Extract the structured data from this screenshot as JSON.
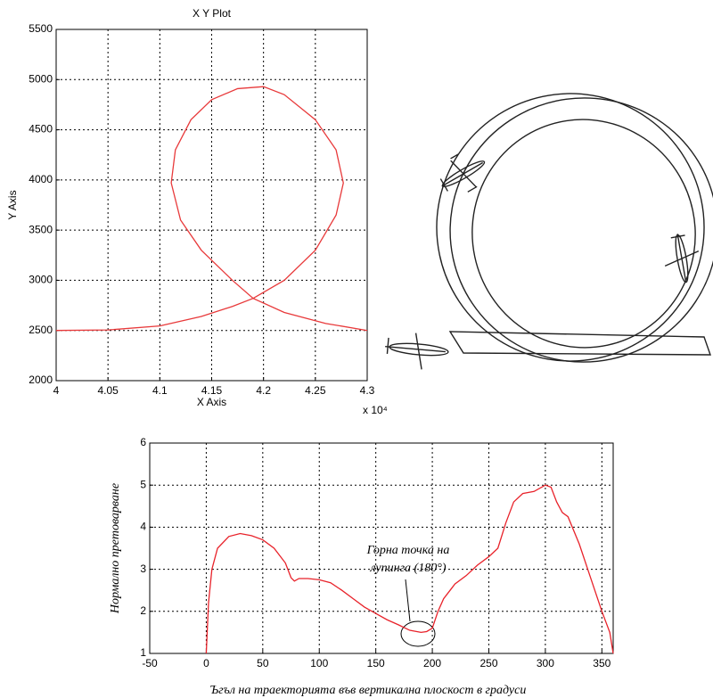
{
  "chart_data": [
    {
      "type": "line",
      "title": "X Y Plot",
      "xlabel": "X Axis",
      "ylabel": "Y Axis",
      "x_multiplier": "x 10⁴",
      "x": [
        4.0,
        4.05,
        4.1,
        4.14,
        4.17,
        4.19,
        4.22,
        4.25,
        4.27,
        4.277,
        4.27,
        4.25,
        4.22,
        4.2,
        4.175,
        4.15,
        4.13,
        4.115,
        4.111,
        4.12,
        4.14,
        4.17,
        4.19,
        4.22,
        4.26,
        4.3
      ],
      "series": [
        {
          "color": "#e8393a",
          "values": [
            2500,
            2505,
            2545,
            2640,
            2740,
            2820,
            3000,
            3300,
            3650,
            3970,
            4300,
            4600,
            4850,
            4930,
            4910,
            4800,
            4600,
            4300,
            3970,
            3600,
            3300,
            3000,
            2820,
            2680,
            2570,
            2500
          ]
        }
      ],
      "xlim": [
        4.0,
        4.3
      ],
      "xticks": [
        4,
        4.05,
        4.1,
        4.15,
        4.2,
        4.25,
        4.3
      ],
      "ylim": [
        2000,
        5500
      ],
      "yticks": [
        2000,
        2500,
        3000,
        3500,
        4000,
        4500,
        5000,
        5500
      ],
      "grid": true
    },
    {
      "type": "line",
      "xlabel": "Ъгъл на траекторията във вертикална плоскост  в градуси",
      "ylabel": "Нормално претоварване",
      "annotation": [
        "Горна точка на",
        "лупинга (180°)"
      ],
      "x": [
        0,
        2,
        5,
        10,
        20,
        30,
        40,
        50,
        60,
        70,
        75,
        78,
        82,
        90,
        100,
        110,
        120,
        130,
        140,
        150,
        160,
        170,
        180,
        190,
        195,
        200,
        205,
        210,
        220,
        230,
        240,
        250,
        258,
        265,
        272,
        280,
        290,
        300,
        305,
        310,
        315,
        320,
        330,
        340,
        350,
        357,
        360
      ],
      "series": [
        {
          "color": "#e8222a",
          "values": [
            1,
            2.2,
            3.0,
            3.5,
            3.78,
            3.85,
            3.8,
            3.7,
            3.5,
            3.15,
            2.8,
            2.72,
            2.78,
            2.78,
            2.75,
            2.68,
            2.5,
            2.3,
            2.1,
            1.95,
            1.8,
            1.68,
            1.55,
            1.5,
            1.52,
            1.6,
            2.0,
            2.3,
            2.65,
            2.85,
            3.1,
            3.3,
            3.5,
            4.1,
            4.6,
            4.8,
            4.85,
            5.0,
            4.95,
            4.6,
            4.35,
            4.25,
            3.6,
            2.8,
            2.0,
            1.5,
            1
          ]
        }
      ],
      "xlim": [
        -50,
        360
      ],
      "xticks": [
        -50,
        0,
        50,
        100,
        150,
        200,
        250,
        300,
        350
      ],
      "ylim": [
        1,
        6
      ],
      "yticks": [
        1,
        2,
        3,
        4,
        5,
        6
      ],
      "grid": true
    }
  ]
}
